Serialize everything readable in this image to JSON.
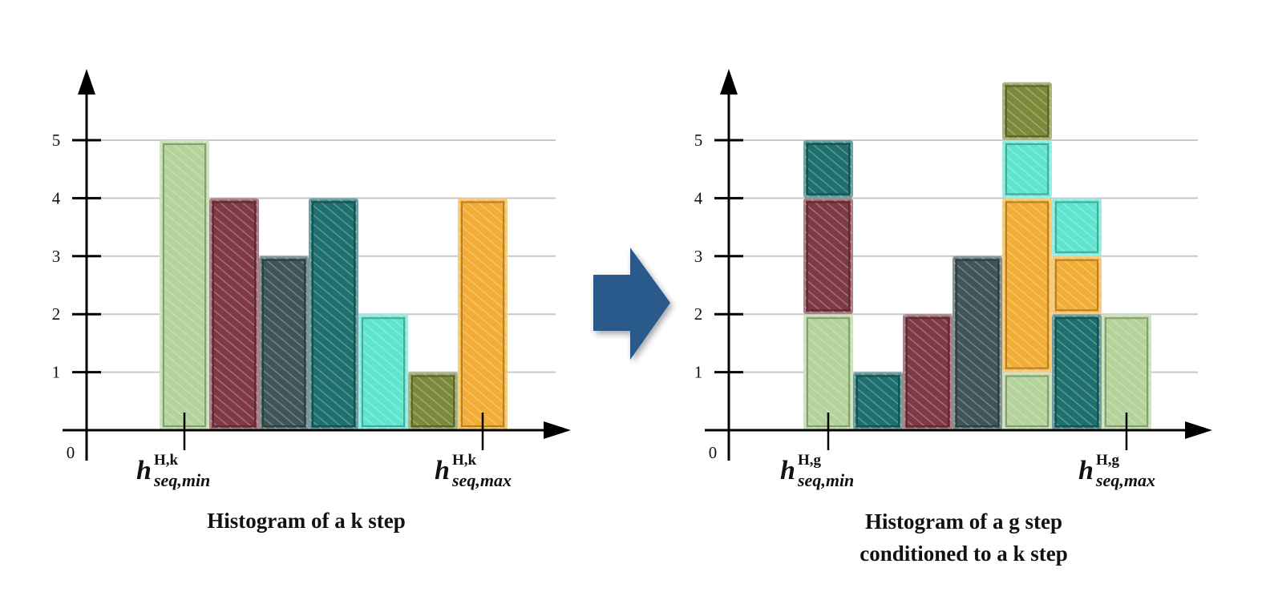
{
  "palette": {
    "light_green": "#b3d39a",
    "maroon": "#7e3a44",
    "slate": "#3f5558",
    "teal": "#1e6f6e",
    "aqua": "#5fe4cf",
    "olive": "#7a8a3a",
    "orange": "#f2ad35",
    "arrow": "#2a5a8c",
    "gridline": "#c8c8c8",
    "axis": "#000000"
  },
  "chart_data": [
    {
      "type": "bar",
      "stacked": false,
      "caption": "Histogram of a k step",
      "origin_label": "0",
      "y_ticks": [
        "1",
        "2",
        "3",
        "4",
        "5"
      ],
      "ylim": [
        0,
        6
      ],
      "grid": true,
      "x_markers": [
        {
          "base": "h",
          "sup": "H,k",
          "sub": "seq,min",
          "at_bar": 0
        },
        {
          "base": "h",
          "sup": "H,k",
          "sub": "seq,max",
          "at_bar": 6
        }
      ],
      "bars": [
        {
          "value": 5,
          "color": "light_green"
        },
        {
          "value": 4,
          "color": "maroon"
        },
        {
          "value": 3,
          "color": "slate"
        },
        {
          "value": 4,
          "color": "teal"
        },
        {
          "value": 2,
          "color": "aqua"
        },
        {
          "value": 1,
          "color": "olive"
        },
        {
          "value": 4,
          "color": "orange"
        }
      ]
    },
    {
      "type": "bar",
      "stacked": true,
      "caption": [
        "Histogram of a g step",
        "conditioned to a k step"
      ],
      "origin_label": "0",
      "y_ticks": [
        "1",
        "2",
        "3",
        "4",
        "5"
      ],
      "ylim": [
        0,
        6
      ],
      "grid": true,
      "x_markers": [
        {
          "base": "h",
          "sup": "H,g",
          "sub": "seq,min",
          "at_bar": 0
        },
        {
          "base": "h",
          "sup": "H,g",
          "sub": "seq,max",
          "at_bar": 6
        }
      ],
      "bars": [
        {
          "segments": [
            {
              "from": 0,
              "to": 2,
              "color": "light_green"
            },
            {
              "from": 2,
              "to": 4,
              "color": "maroon"
            },
            {
              "from": 4,
              "to": 5,
              "color": "teal"
            }
          ]
        },
        {
          "segments": [
            {
              "from": 0,
              "to": 1,
              "color": "teal"
            }
          ]
        },
        {
          "segments": [
            {
              "from": 0,
              "to": 2,
              "color": "maroon"
            }
          ]
        },
        {
          "segments": [
            {
              "from": 0,
              "to": 3,
              "color": "slate"
            }
          ]
        },
        {
          "segments": [
            {
              "from": 0,
              "to": 1,
              "color": "light_green"
            },
            {
              "from": 1,
              "to": 4,
              "color": "orange"
            },
            {
              "from": 4,
              "to": 5,
              "color": "aqua"
            },
            {
              "from": 5,
              "to": 6,
              "color": "olive"
            }
          ]
        },
        {
          "segments": [
            {
              "from": 0,
              "to": 2,
              "color": "teal"
            },
            {
              "from": 2,
              "to": 3,
              "color": "orange"
            },
            {
              "from": 3,
              "to": 4,
              "color": "aqua"
            }
          ]
        },
        {
          "segments": [
            {
              "from": 0,
              "to": 2,
              "color": "light_green"
            }
          ]
        }
      ]
    }
  ]
}
